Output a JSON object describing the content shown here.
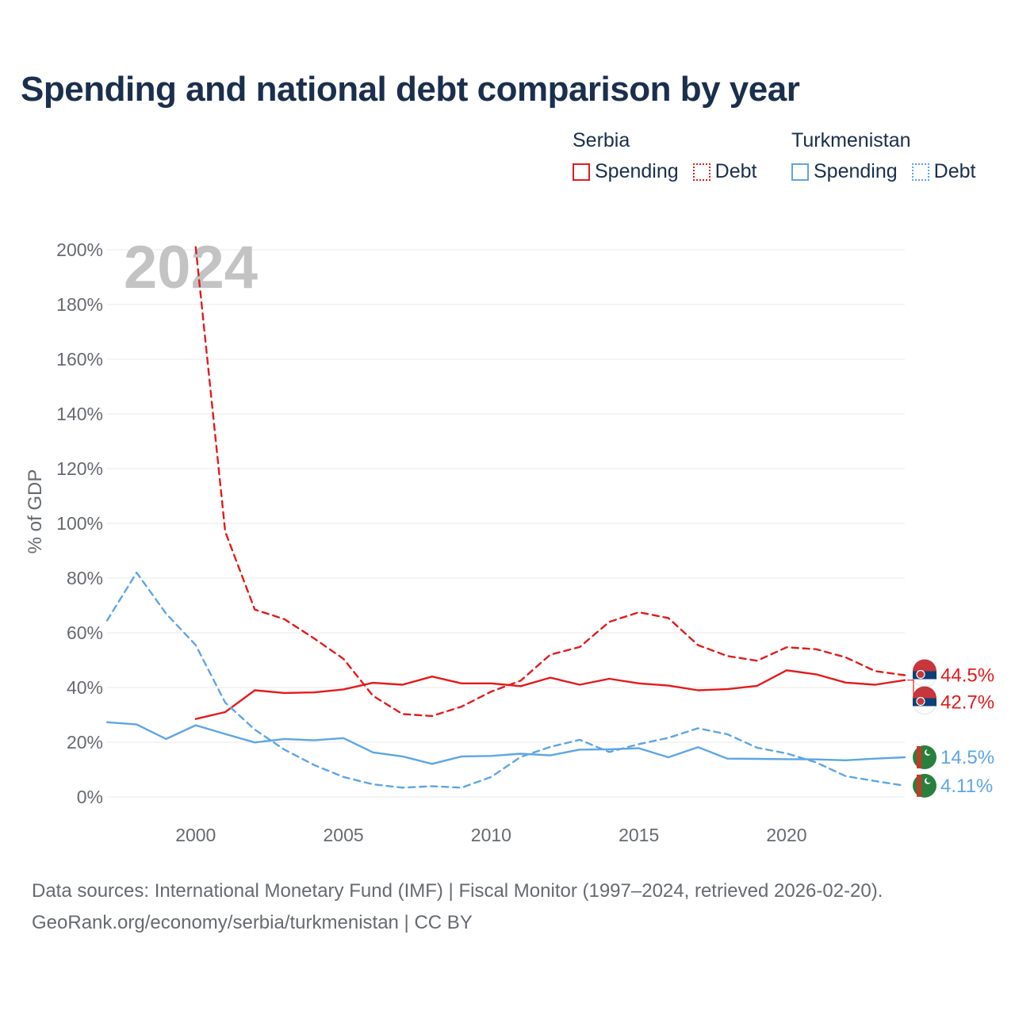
{
  "title": "Spending and national debt comparison by year",
  "legend": {
    "groups": [
      {
        "name": "Serbia",
        "color": "#e41a1c",
        "items": [
          {
            "label": "Spending",
            "style": "solid"
          },
          {
            "label": "Debt",
            "style": "dotted"
          }
        ]
      },
      {
        "name": "Turkmenistan",
        "color": "#5ea5e6",
        "items": [
          {
            "label": "Spending",
            "style": "solid"
          },
          {
            "label": "Debt",
            "style": "dotted"
          }
        ]
      }
    ]
  },
  "footer": {
    "line1": "Data sources: International Monetary Fund (IMF) | Fiscal Monitor (1997–2024, retrieved 2026-02-20).",
    "line2": "GeoRank.org/economy/serbia/turkmenistan | CC BY"
  },
  "chart_data": {
    "type": "line",
    "title": "Spending and national debt comparison by year",
    "year_watermark": "2024",
    "xlabel": "",
    "ylabel": "% of GDP",
    "xlim": [
      1997,
      2024
    ],
    "ylim": [
      0,
      200
    ],
    "x_ticks": [
      2000,
      2005,
      2010,
      2015,
      2020
    ],
    "y_ticks": [
      0,
      20,
      40,
      60,
      80,
      100,
      120,
      140,
      160,
      180,
      200
    ],
    "y_tick_labels": [
      "0%",
      "20%",
      "40%",
      "60%",
      "80%",
      "100%",
      "120%",
      "140%",
      "160%",
      "180%",
      "200%"
    ],
    "grid": true,
    "series": [
      {
        "name": "Serbia Spending",
        "country": "Serbia",
        "metric": "Spending",
        "color": "#e41a1c",
        "dash": "solid",
        "x": [
          2000,
          2001,
          2002,
          2003,
          2004,
          2005,
          2006,
          2007,
          2008,
          2009,
          2010,
          2011,
          2012,
          2013,
          2014,
          2015,
          2016,
          2017,
          2018,
          2019,
          2020,
          2021,
          2022,
          2023,
          2024
        ],
        "values": [
          28.5,
          31,
          39,
          38,
          38.2,
          39.3,
          41.7,
          41,
          44,
          41.5,
          41.5,
          40.5,
          43.6,
          41,
          43.2,
          41.5,
          40.7,
          39,
          39.4,
          40.6,
          46.3,
          44.8,
          41.8,
          41,
          42.7
        ],
        "end_label": "42.7%"
      },
      {
        "name": "Serbia Debt",
        "country": "Serbia",
        "metric": "Debt",
        "color": "#e41a1c",
        "dash": "dashed",
        "x": [
          2000,
          2001,
          2002,
          2003,
          2004,
          2005,
          2006,
          2007,
          2008,
          2009,
          2010,
          2011,
          2012,
          2013,
          2014,
          2015,
          2016,
          2017,
          2018,
          2019,
          2020,
          2021,
          2022,
          2023,
          2024
        ],
        "values": [
          201,
          97,
          68.5,
          65,
          58,
          50.5,
          37,
          30.3,
          29.6,
          33,
          38.5,
          42.5,
          52,
          54.8,
          64,
          67.5,
          65.4,
          55.5,
          51.5,
          49.8,
          54.7,
          54,
          51,
          46,
          44.5
        ],
        "end_label": "44.5%"
      },
      {
        "name": "Turkmenistan Spending",
        "country": "Turkmenistan",
        "metric": "Spending",
        "color": "#5ea5e6",
        "dash": "solid",
        "x": [
          1997,
          1998,
          1999,
          2000,
          2001,
          2002,
          2003,
          2004,
          2005,
          2006,
          2007,
          2008,
          2009,
          2010,
          2011,
          2012,
          2013,
          2014,
          2015,
          2016,
          2017,
          2018,
          2019,
          2020,
          2021,
          2022,
          2023,
          2024
        ],
        "values": [
          27.3,
          26.5,
          21.2,
          26.2,
          23,
          19.9,
          21.2,
          20.7,
          21.5,
          16.3,
          14.8,
          12.1,
          14.8,
          15,
          15.8,
          15.2,
          17.3,
          17.4,
          17.8,
          14.5,
          18.2,
          14,
          13.9,
          13.8,
          13.7,
          13.4,
          14,
          14.5
        ],
        "end_label": "14.5%"
      },
      {
        "name": "Turkmenistan Debt",
        "country": "Turkmenistan",
        "metric": "Debt",
        "color": "#5ea5e6",
        "dash": "dashed",
        "x": [
          1997,
          1998,
          1999,
          2000,
          2001,
          2002,
          2003,
          2004,
          2005,
          2006,
          2007,
          2008,
          2009,
          2010,
          2011,
          2012,
          2013,
          2014,
          2015,
          2016,
          2017,
          2018,
          2019,
          2020,
          2021,
          2022,
          2023,
          2024
        ],
        "values": [
          64.5,
          82,
          67,
          55.5,
          34.5,
          24.6,
          17.3,
          11.7,
          7.3,
          4.6,
          3.4,
          3.9,
          3.4,
          7.3,
          14.6,
          18.3,
          20.9,
          16.4,
          19.3,
          21.6,
          25.1,
          22.9,
          18,
          15.9,
          12.6,
          7.6,
          5.8,
          4.11
        ],
        "end_label": "4.11%"
      }
    ]
  }
}
